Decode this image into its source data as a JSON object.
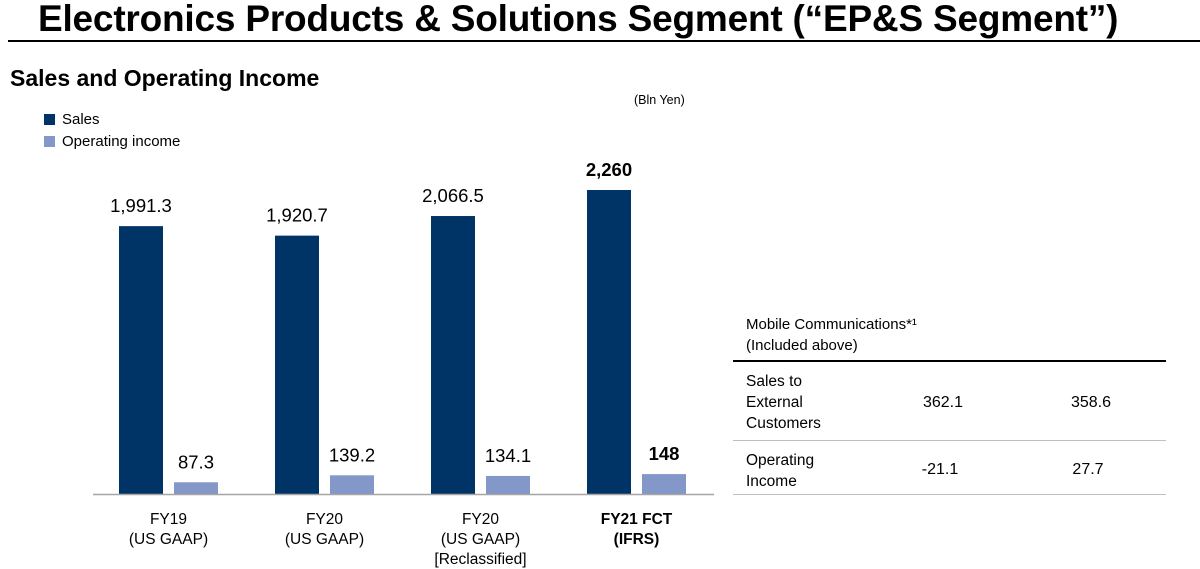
{
  "page": {
    "title": "Electronics Products & Solutions Segment (“EP&S Segment”)",
    "subtitle": "Sales and Operating Income",
    "unit_note": "(Bln Yen)"
  },
  "colors": {
    "sales": "#003366",
    "operating_income": "#8497C9",
    "axis": "#a6a6a6"
  },
  "chart_data": {
    "type": "bar",
    "categories": [
      "FY19 (US GAAP)",
      "FY20 (US GAAP)",
      "FY20 (US GAAP) [Reclassified]",
      "FY21 FCT (IFRS)"
    ],
    "category_lines": [
      [
        "FY19",
        "(US GAAP)"
      ],
      [
        "FY20",
        "(US GAAP)"
      ],
      [
        "FY20",
        "(US GAAP)",
        "[Reclassified]"
      ],
      [
        "FY21 FCT",
        "(IFRS)"
      ]
    ],
    "category_bold": [
      false,
      false,
      false,
      true
    ],
    "series": [
      {
        "name": "Sales",
        "values": [
          1991.3,
          1920.7,
          2066.5,
          2260
        ],
        "labels": [
          "1,991.3",
          "1,920.7",
          "2,066.5",
          "2,260"
        ]
      },
      {
        "name": "Operating income",
        "values": [
          87.3,
          139.2,
          134.1,
          148
        ],
        "labels": [
          "87.3",
          "139.2",
          "134.1",
          "148"
        ]
      }
    ],
    "ylim": [
      0,
      2260
    ],
    "legend_position": "top-left",
    "grid": false
  },
  "side_table": {
    "header_line1": "Mobile Communications*¹",
    "header_line2": "(Included above)",
    "rows": [
      {
        "label_lines": [
          "Sales to",
          "External",
          "Customers"
        ],
        "values": [
          "362.1",
          "358.6"
        ]
      },
      {
        "label_lines": [
          "Operating",
          "Income"
        ],
        "values": [
          "-21.1",
          "27.7"
        ]
      }
    ]
  }
}
